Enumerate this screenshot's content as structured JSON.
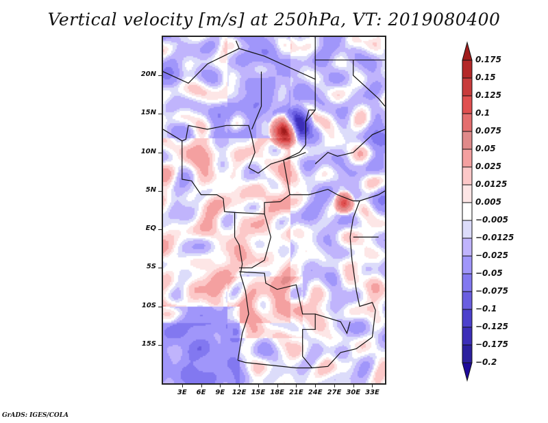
{
  "title": "Vertical velocity [m/s] at 250hPa, VT: 2019080400",
  "footer": "GrADS: IGES/COLA",
  "map": {
    "variable": "Vertical velocity",
    "units": "m/s",
    "level": "250hPa",
    "valid_time": "2019080400",
    "lon_range": [
      0,
      35
    ],
    "lat_range": [
      -20,
      25
    ],
    "y_axis_labels": [
      {
        "label": "20N",
        "lat": 20
      },
      {
        "label": "15N",
        "lat": 15
      },
      {
        "label": "10N",
        "lat": 10
      },
      {
        "label": "5N",
        "lat": 5
      },
      {
        "label": "EQ",
        "lat": 0
      },
      {
        "label": "5S",
        "lat": -5
      },
      {
        "label": "10S",
        "lat": -10
      },
      {
        "label": "15S",
        "lat": -15
      }
    ],
    "x_axis_labels": [
      {
        "label": "3E",
        "lon": 3
      },
      {
        "label": "6E",
        "lon": 6
      },
      {
        "label": "9E",
        "lon": 9
      },
      {
        "label": "12E",
        "lon": 12
      },
      {
        "label": "15E",
        "lon": 15
      },
      {
        "label": "18E",
        "lon": 18
      },
      {
        "label": "21E",
        "lon": 21
      },
      {
        "label": "24E",
        "lon": 24
      },
      {
        "label": "27E",
        "lon": 27
      },
      {
        "label": "30E",
        "lon": 30
      },
      {
        "label": "33E",
        "lon": 33
      }
    ]
  },
  "colorbar": {
    "labels": [
      "0.175",
      "0.15",
      "0.125",
      "0.1",
      "0.075",
      "0.05",
      "0.025",
      "0.0125",
      "0.005",
      "−0.005",
      "−0.0125",
      "−0.025",
      "−0.05",
      "−0.075",
      "−0.1",
      "−0.125",
      "−0.175",
      "−0.2"
    ],
    "colors": [
      "#a01c1c",
      "#b42828",
      "#c83c3c",
      "#e05050",
      "#e46e6e",
      "#e08a8a",
      "#f4a0a0",
      "#fcc8c8",
      "#fde6e6",
      "#ffffff",
      "#dcdcfa",
      "#c0b4fc",
      "#a096fa",
      "#8278f0",
      "#6a5ee0",
      "#4c40cc",
      "#3c2eb8",
      "#2c209e",
      "#1e0a9a"
    ]
  }
}
